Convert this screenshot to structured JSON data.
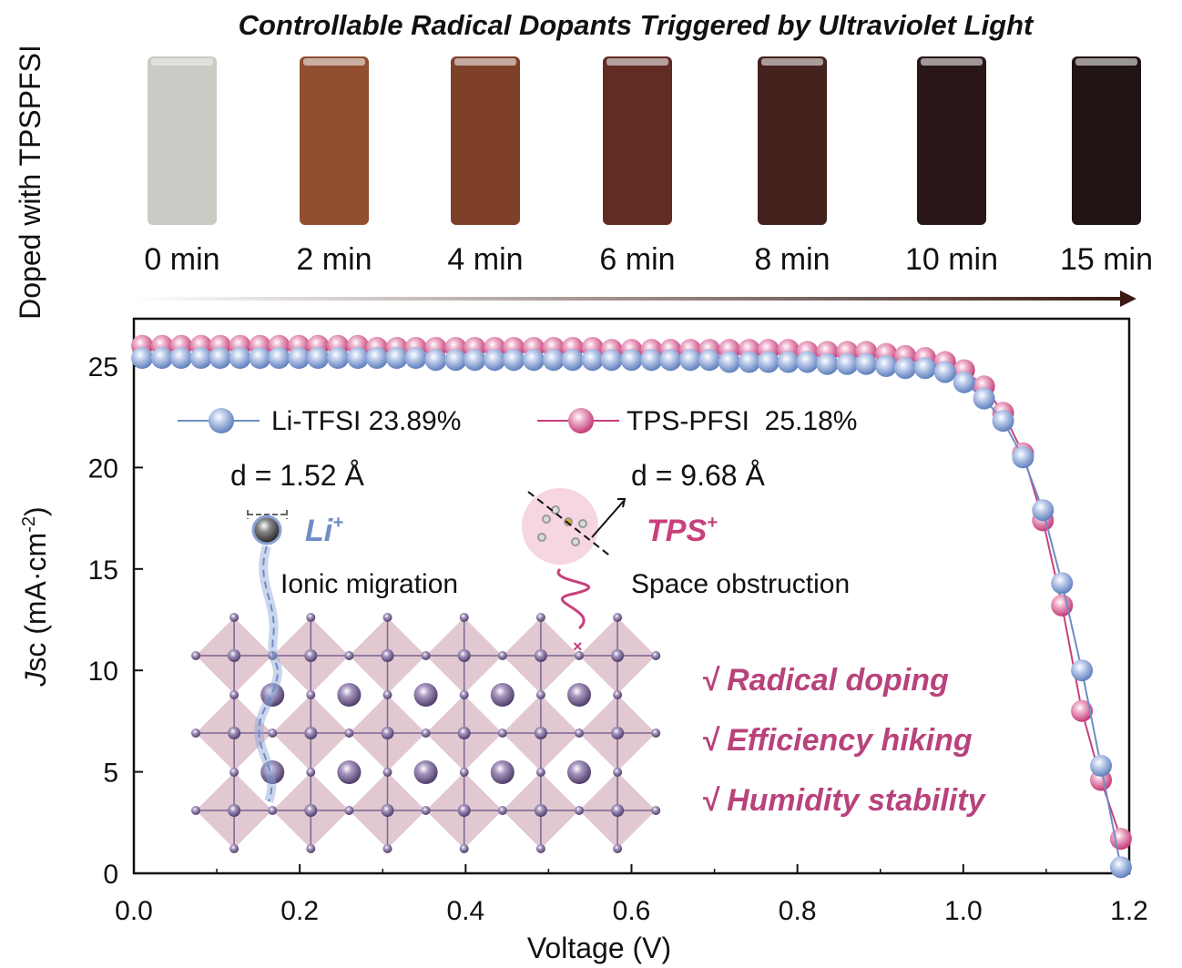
{
  "title": "Controllable Radical Dopants Triggered by Ultraviolet Light",
  "side_label": "Doped with TPSPFSI",
  "vials": [
    {
      "label": "0 min",
      "color": "#c9c7c1"
    },
    {
      "label": "2 min",
      "color": "#8b4526"
    },
    {
      "label": "4 min",
      "color": "#78361f"
    },
    {
      "label": "6 min",
      "color": "#5a2118"
    },
    {
      "label": "8 min",
      "color": "#3a1611"
    },
    {
      "label": "10 min",
      "color": "#1c0a0c"
    },
    {
      "label": "15 min",
      "color": "#150708"
    }
  ],
  "annotations": {
    "li_distance": "d = 1.52 Å",
    "tps_distance": "d = 9.68 Å",
    "li_ion": "Li",
    "tps_ion": "TPS",
    "ion_charge": "+",
    "li_process": "Ionic migration",
    "tps_process": "Space obstruction",
    "benefits": [
      "√ Radical doping",
      "√ Efficiency hiking",
      "√ Humidity stability"
    ],
    "benefit_color": "#b8437c"
  },
  "chart_data": {
    "type": "scatter",
    "xlabel": "Voltage (V)",
    "ylabel_italic": "J",
    "ylabel_rest": "sc (mA·cm",
    "ylabel_sup": "-2",
    "ylabel_end": ")",
    "xlim": [
      0,
      1.2
    ],
    "ylim": [
      0,
      27
    ],
    "xticks": [
      "0.0",
      "0.2",
      "0.4",
      "0.6",
      "0.8",
      "1.0",
      "1.2"
    ],
    "yticks": [
      "0",
      "5",
      "10",
      "15",
      "20",
      "25"
    ],
    "legend_position": "top-left",
    "x": [
      0.01,
      0.034,
      0.057,
      0.081,
      0.104,
      0.128,
      0.152,
      0.175,
      0.199,
      0.222,
      0.246,
      0.27,
      0.293,
      0.317,
      0.34,
      0.364,
      0.388,
      0.411,
      0.435,
      0.458,
      0.482,
      0.506,
      0.529,
      0.553,
      0.576,
      0.6,
      0.624,
      0.647,
      0.671,
      0.694,
      0.718,
      0.742,
      0.765,
      0.789,
      0.812,
      0.836,
      0.86,
      0.883,
      0.907,
      0.93,
      0.954,
      0.978,
      1.001,
      1.025,
      1.048,
      1.072,
      1.096,
      1.119,
      1.143,
      1.166,
      1.19
    ],
    "series": [
      {
        "name": "Li-TFSI",
        "label": "Li-TFSI 23.89%",
        "color": "#6f8cc4",
        "values": [
          25.4,
          25.4,
          25.4,
          25.4,
          25.4,
          25.4,
          25.4,
          25.4,
          25.4,
          25.4,
          25.4,
          25.4,
          25.4,
          25.4,
          25.4,
          25.3,
          25.3,
          25.3,
          25.3,
          25.3,
          25.3,
          25.3,
          25.3,
          25.3,
          25.3,
          25.3,
          25.3,
          25.3,
          25.3,
          25.3,
          25.2,
          25.2,
          25.2,
          25.2,
          25.2,
          25.1,
          25.1,
          25.1,
          25.0,
          24.9,
          24.9,
          24.7,
          24.2,
          23.4,
          22.3,
          20.5,
          17.9,
          14.3,
          10.0,
          5.3,
          0.3
        ]
      },
      {
        "name": "TPS-PFSI",
        "label": "TPS-PFSI  25.18%",
        "color": "#c8407c",
        "values": [
          26.0,
          26.0,
          26.0,
          26.0,
          26.0,
          26.0,
          26.0,
          26.0,
          26.0,
          26.0,
          26.0,
          26.0,
          25.9,
          25.9,
          25.9,
          25.9,
          25.9,
          25.9,
          25.9,
          25.9,
          25.9,
          25.9,
          25.9,
          25.9,
          25.8,
          25.8,
          25.8,
          25.8,
          25.8,
          25.8,
          25.8,
          25.8,
          25.8,
          25.8,
          25.7,
          25.7,
          25.7,
          25.7,
          25.6,
          25.5,
          25.4,
          25.2,
          24.8,
          24.0,
          22.7,
          20.7,
          17.4,
          13.2,
          8.0,
          4.6,
          1.7
        ]
      }
    ]
  }
}
